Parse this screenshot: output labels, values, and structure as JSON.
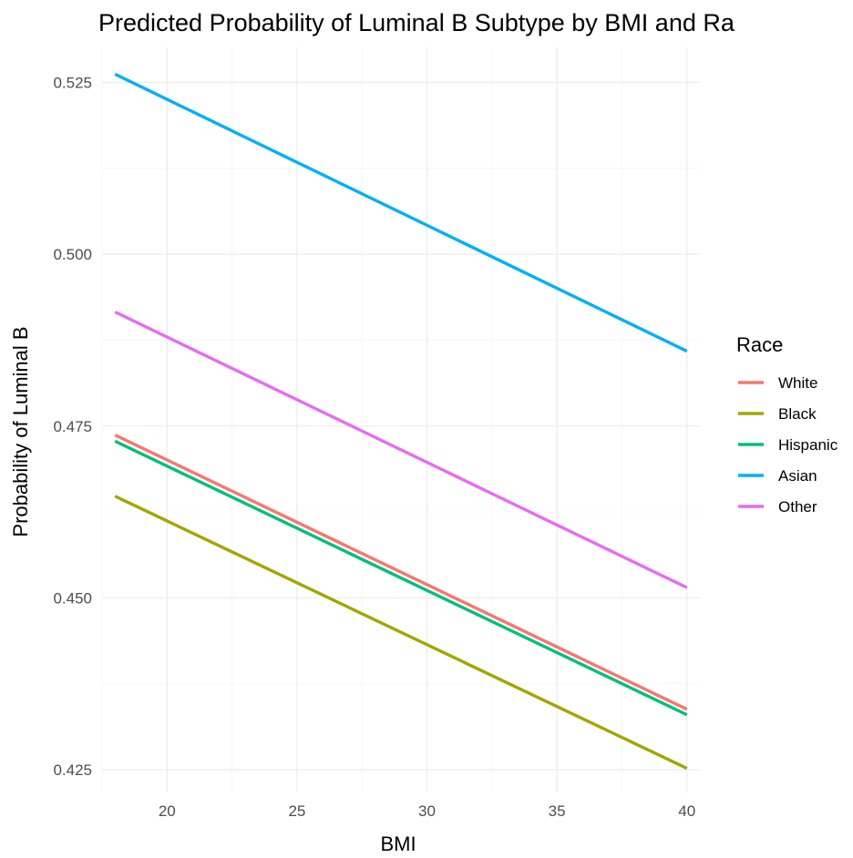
{
  "chart_data": {
    "type": "line",
    "title": "Predicted Probability of Luminal B Subtype by BMI and Ra",
    "xlabel": "BMI",
    "ylabel": "Probability of Luminal B",
    "xlim": [
      17.5,
      40.5
    ],
    "ylim": [
      0.4217,
      0.5301
    ],
    "x_ticks": [
      20,
      25,
      30,
      35,
      40
    ],
    "x_tick_labels": [
      "20",
      "25",
      "30",
      "35",
      "40"
    ],
    "y_ticks": [
      0.425,
      0.45,
      0.475,
      0.5,
      0.525
    ],
    "y_tick_labels": [
      "0.425",
      "0.450",
      "0.475",
      "0.500",
      "0.525"
    ],
    "grid": true,
    "legend": {
      "title": "Race",
      "placement": "right"
    },
    "x": [
      18,
      40
    ],
    "series": [
      {
        "name": "White",
        "color": "#F8766D",
        "values": [
          0.4737,
          0.4338
        ]
      },
      {
        "name": "Black",
        "color": "#A3A500",
        "values": [
          0.4648,
          0.4252
        ]
      },
      {
        "name": "Hispanic",
        "color": "#00BF7D",
        "values": [
          0.4728,
          0.433
        ]
      },
      {
        "name": "Asian",
        "color": "#00B0F6",
        "values": [
          0.5262,
          0.4859
        ]
      },
      {
        "name": "Other",
        "color": "#E76BF3",
        "values": [
          0.4916,
          0.4515
        ]
      }
    ]
  }
}
